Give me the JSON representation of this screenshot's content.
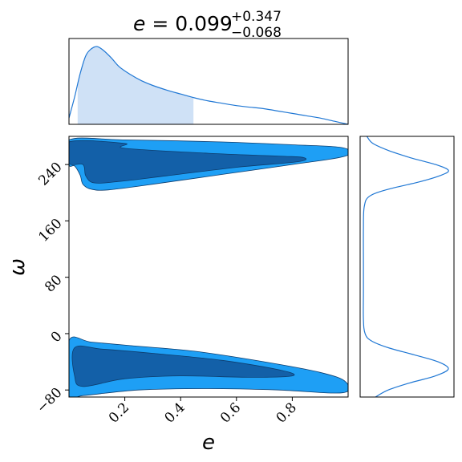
{
  "chart_data": {
    "type": "corner",
    "title": {
      "var": "e",
      "value": "0.099",
      "plus": "+0.347",
      "minus": "−0.068"
    },
    "xlabel": "e",
    "ylabel": "ω",
    "xlim": [
      0.0,
      1.0
    ],
    "ylim": [
      -90,
      280
    ],
    "xticks": [
      0.2,
      0.4,
      0.6,
      0.8
    ],
    "xtick_labels": [
      "0.2",
      "0.4",
      "0.6",
      "0.8"
    ],
    "yticks": [
      -80,
      0,
      80,
      160,
      240
    ],
    "ytick_labels": [
      "−80",
      "0",
      "80",
      "160",
      "240"
    ],
    "colors": {
      "line": "#1f77d4",
      "fill_shade": "#cfe1f6",
      "contour_outer": "#1e9ff5",
      "contour_inner": "#1360a8"
    },
    "marginal_e": {
      "x": [
        0.0,
        0.02,
        0.04,
        0.06,
        0.08,
        0.1,
        0.12,
        0.15,
        0.18,
        0.22,
        0.26,
        0.3,
        0.35,
        0.4,
        0.45,
        0.5,
        0.55,
        0.6,
        0.65,
        0.7,
        0.75,
        0.8,
        0.85,
        0.9,
        0.95,
        1.0
      ],
      "density": [
        0.08,
        0.35,
        0.65,
        0.88,
        0.97,
        1.0,
        0.96,
        0.86,
        0.74,
        0.64,
        0.56,
        0.5,
        0.44,
        0.39,
        0.34,
        0.3,
        0.27,
        0.24,
        0.22,
        0.2,
        0.17,
        0.14,
        0.11,
        0.08,
        0.04,
        0.0
      ],
      "credible_interval": [
        0.031,
        0.446
      ]
    },
    "marginal_omega": {
      "omega": [
        -90,
        -80,
        -70,
        -60,
        -50,
        -40,
        -30,
        -20,
        -10,
        0,
        20,
        60,
        100,
        150,
        180,
        195,
        205,
        215,
        225,
        232,
        240,
        250,
        260,
        270,
        280
      ],
      "density": [
        0.15,
        0.3,
        0.55,
        0.85,
        1.0,
        0.88,
        0.6,
        0.3,
        0.1,
        0.03,
        0.01,
        0.01,
        0.01,
        0.01,
        0.02,
        0.08,
        0.3,
        0.65,
        0.92,
        1.0,
        0.85,
        0.55,
        0.3,
        0.12,
        0.05
      ]
    },
    "contours": {
      "upper_outer": [
        [
          0.0,
          275
        ],
        [
          0.2,
          275
        ],
        [
          0.55,
          272
        ],
        [
          0.8,
          268
        ],
        [
          0.98,
          264
        ],
        [
          0.99,
          252
        ],
        [
          0.8,
          240
        ],
        [
          0.55,
          226
        ],
        [
          0.3,
          212
        ],
        [
          0.14,
          204
        ],
        [
          0.08,
          205
        ],
        [
          0.05,
          212
        ],
        [
          0.04,
          225
        ],
        [
          0.02,
          238
        ],
        [
          0.0,
          240
        ]
      ],
      "upper_inner": [
        [
          0.0,
          272
        ],
        [
          0.2,
          270
        ],
        [
          0.2,
          263
        ],
        [
          0.5,
          256
        ],
        [
          0.75,
          252
        ],
        [
          0.84,
          250
        ],
        [
          0.82,
          244
        ],
        [
          0.6,
          236
        ],
        [
          0.35,
          224
        ],
        [
          0.18,
          216
        ],
        [
          0.09,
          214
        ],
        [
          0.06,
          224
        ],
        [
          0.05,
          240
        ],
        [
          0.0,
          242
        ]
      ],
      "lower_outer": [
        [
          0.0,
          -10
        ],
        [
          0.08,
          -12
        ],
        [
          0.22,
          -17
        ],
        [
          0.45,
          -25
        ],
        [
          0.7,
          -40
        ],
        [
          0.9,
          -55
        ],
        [
          0.99,
          -68
        ],
        [
          0.98,
          -84
        ],
        [
          0.75,
          -80
        ],
        [
          0.5,
          -78
        ],
        [
          0.25,
          -80
        ],
        [
          0.05,
          -88
        ],
        [
          0.0,
          -88
        ]
      ],
      "lower_inner": [
        [
          0.02,
          -20
        ],
        [
          0.12,
          -22
        ],
        [
          0.3,
          -28
        ],
        [
          0.55,
          -38
        ],
        [
          0.76,
          -52
        ],
        [
          0.8,
          -60
        ],
        [
          0.65,
          -62
        ],
        [
          0.4,
          -60
        ],
        [
          0.2,
          -64
        ],
        [
          0.05,
          -75
        ],
        [
          0.02,
          -60
        ]
      ]
    }
  }
}
